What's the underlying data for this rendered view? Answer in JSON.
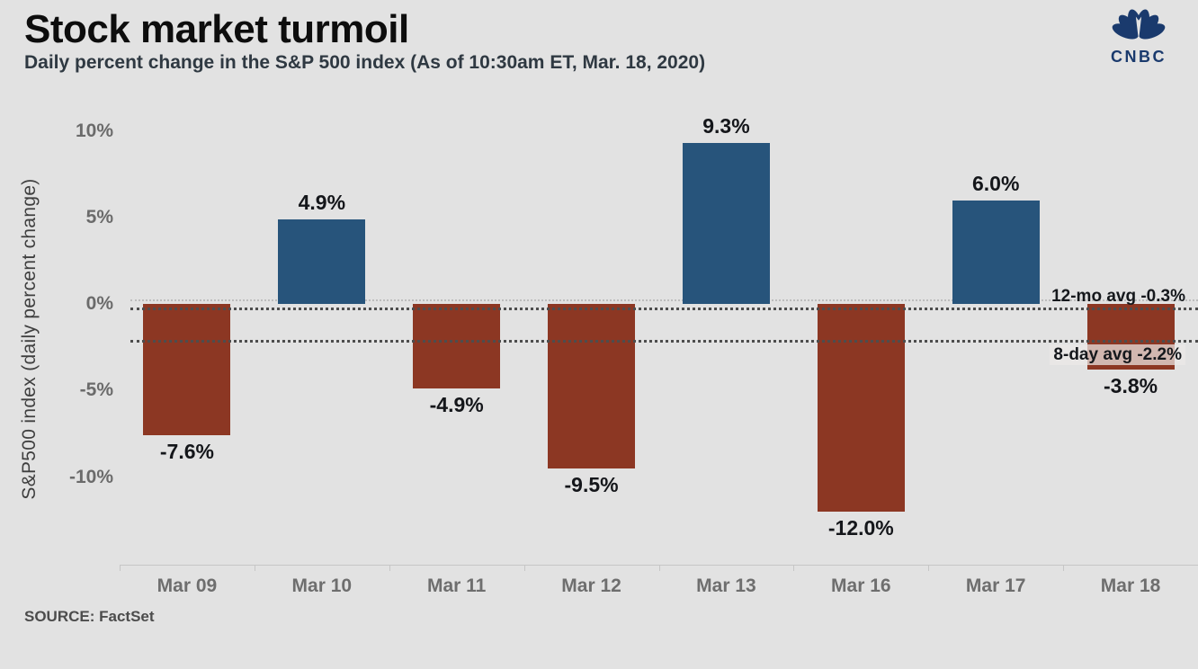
{
  "header": {
    "title": "Stock market turmoil",
    "subtitle": "Daily percent change in the S&P 500 index (As of 10:30am ET,  Mar. 18, 2020)",
    "logo_text": "CNBC"
  },
  "chart_data": {
    "type": "bar",
    "title": "Stock market turmoil",
    "subtitle": "Daily percent change in the S&P 500 index (As of 10:30am ET, Mar. 18, 2020)",
    "xlabel": "",
    "ylabel": "S&P500 index (daily percent change)",
    "categories": [
      "Mar 09",
      "Mar 10",
      "Mar 11",
      "Mar 12",
      "Mar 13",
      "Mar 16",
      "Mar 17",
      "Mar 18"
    ],
    "values": [
      -7.6,
      4.9,
      -4.9,
      -9.5,
      9.3,
      -12.0,
      6.0,
      -3.8
    ],
    "value_labels": [
      "-7.6%",
      "4.9%",
      "-4.9%",
      "-9.5%",
      "9.3%",
      "-12.0%",
      "6.0%",
      "-3.8%"
    ],
    "ylim": [
      -13.5,
      11.5
    ],
    "grid": false,
    "legend": "none",
    "positive_color": "#27547b",
    "negative_color": "#8c3723",
    "background_color": "#e2e2e2",
    "y_ticks": [
      {
        "label": "10%",
        "value": 10
      },
      {
        "label": "5%",
        "value": 5
      },
      {
        "label": "0%",
        "value": 0
      },
      {
        "label": "-5%",
        "value": -5
      },
      {
        "label": "-10%",
        "value": -10
      }
    ],
    "reference_lines": [
      {
        "label": "12-mo avg -0.3%",
        "value": -0.3,
        "label_position": "above",
        "boxed": false
      },
      {
        "label": "8-day avg -2.2%",
        "value": -2.2,
        "label_position": "below",
        "boxed": true
      }
    ]
  },
  "footer": {
    "source": "SOURCE: FactSet"
  }
}
